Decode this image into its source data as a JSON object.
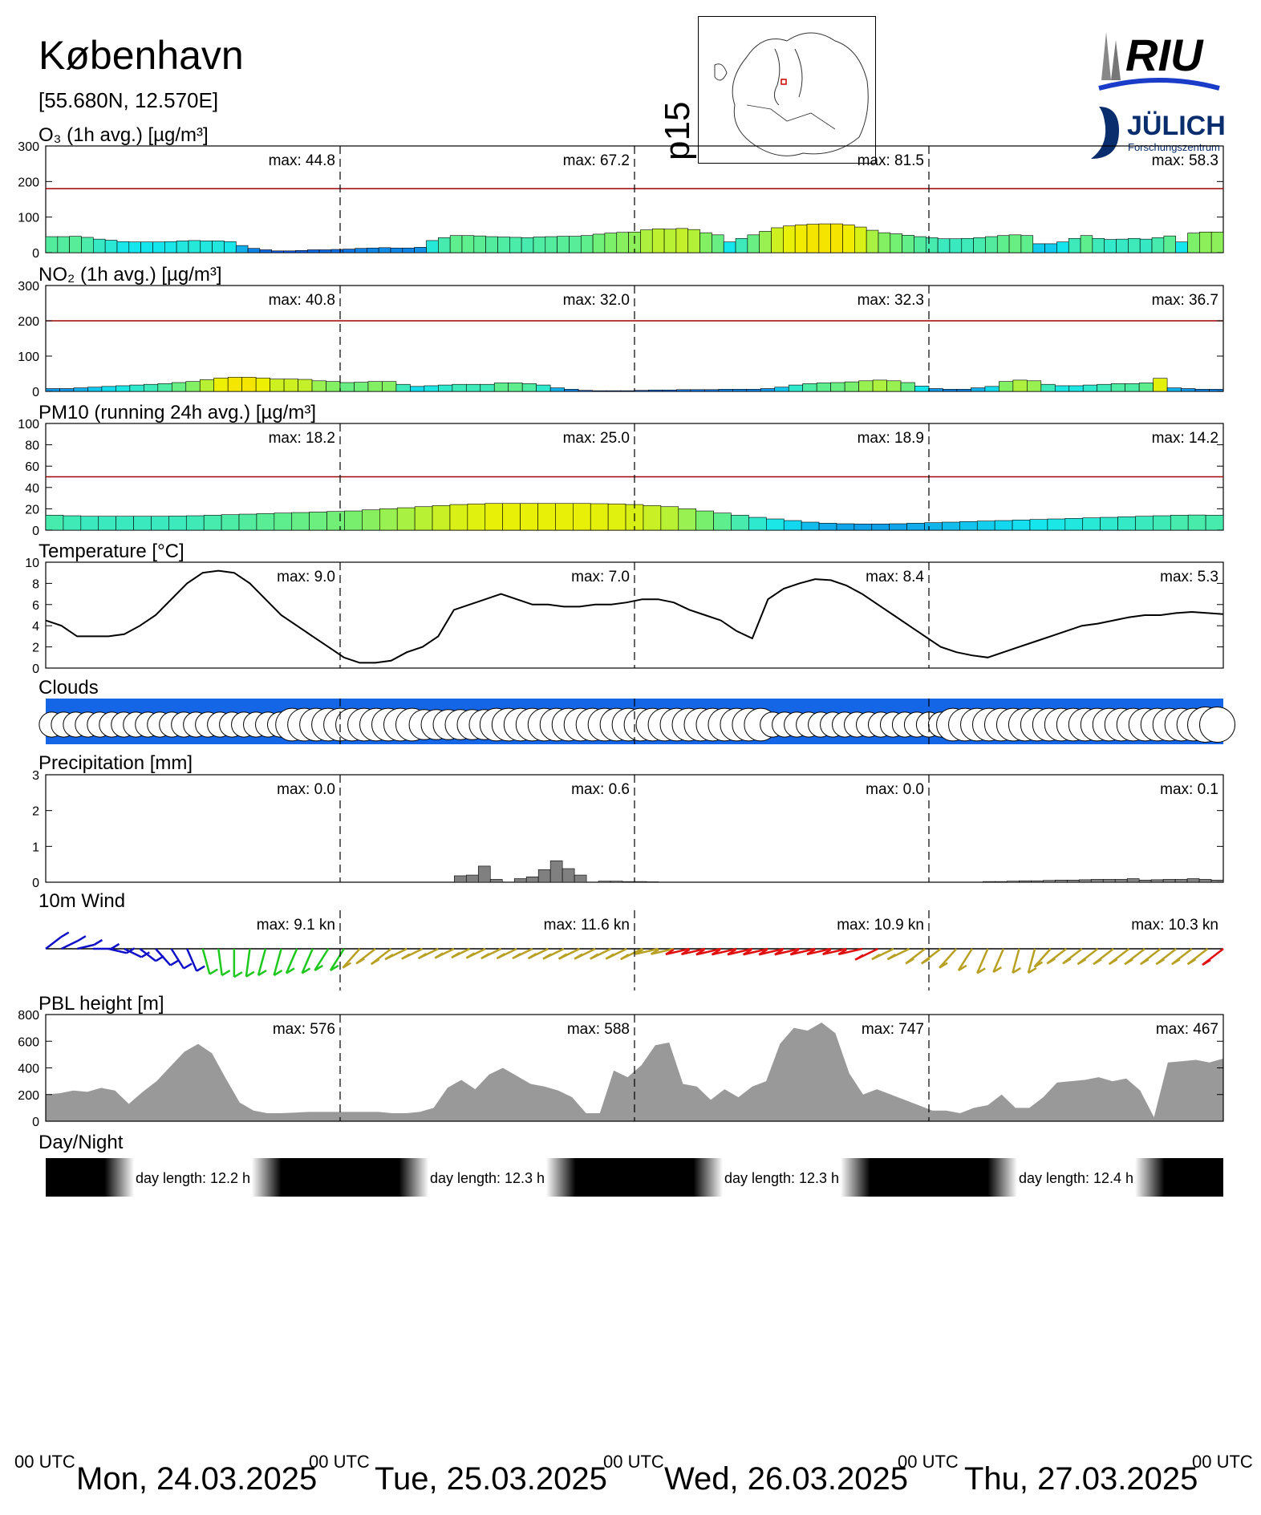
{
  "header": {
    "station": "København",
    "coords": "[55.680N, 12.570E]",
    "map_code": "p15",
    "logo_riu": "RIU",
    "logo_fz": "JÜLICH",
    "logo_fz_sub": "Forschungszentrum"
  },
  "footer": {
    "utc_label": "00 UTC",
    "days": [
      "Mon, 24.03.2025",
      "Tue, 25.03.2025",
      "Wed, 26.03.2025",
      "Thu, 27.03.2025"
    ]
  },
  "colors": {
    "threshold": "#a00000",
    "gray": "#999999",
    "wind_blue": "#1010c8",
    "wind_green": "#1ec81e",
    "wind_olive": "#b8a023",
    "wind_red": "#e01010",
    "cloud_bg": "#1466e6"
  },
  "chart_data": [
    {
      "id": "o3",
      "type": "bar",
      "title": "O₃ (1h avg.) [µg/m³]",
      "ylim": [
        0,
        300
      ],
      "yticks": [
        0,
        100,
        200,
        300
      ],
      "threshold": 180,
      "daily_max": [
        "max:  44.8",
        "max:  67.2",
        "max:  81.5",
        "max:  58.3"
      ],
      "values": [
        45,
        45,
        46,
        43,
        38,
        35,
        31,
        30,
        30,
        30,
        31,
        33,
        34,
        33,
        33,
        31,
        20,
        12,
        8,
        5,
        5,
        6,
        8,
        8,
        9,
        10,
        12,
        13,
        14,
        13,
        13,
        15,
        34,
        42,
        48,
        48,
        47,
        45,
        44,
        43,
        42,
        44,
        45,
        46,
        46,
        48,
        52,
        55,
        57,
        58,
        64,
        67,
        66,
        68,
        65,
        56,
        50,
        30,
        40,
        50,
        60,
        70,
        75,
        78,
        80,
        81,
        81,
        78,
        72,
        63,
        56,
        53,
        49,
        45,
        42,
        39,
        39,
        40,
        42,
        45,
        48,
        50,
        48,
        25,
        25,
        30,
        40,
        48,
        40,
        37,
        38,
        40,
        38,
        42,
        47,
        30,
        55,
        58,
        58
      ]
    },
    {
      "id": "no2",
      "type": "bar",
      "title": "NO₂ (1h avg.) [µg/m³]",
      "ylim": [
        0,
        300
      ],
      "yticks": [
        0,
        100,
        200,
        300
      ],
      "threshold": 200,
      "daily_max": [
        "max:  40.8",
        "max:  32.0",
        "max:  32.3",
        "max:  36.7"
      ],
      "values": [
        8,
        8,
        10,
        12,
        14,
        16,
        18,
        20,
        22,
        25,
        28,
        33,
        38,
        40,
        40,
        38,
        35,
        35,
        34,
        30,
        28,
        25,
        26,
        28,
        28,
        20,
        14,
        16,
        18,
        20,
        20,
        20,
        24,
        24,
        22,
        18,
        10,
        6,
        3,
        2,
        2,
        2,
        3,
        4,
        4,
        5,
        5,
        5,
        6,
        6,
        6,
        8,
        12,
        18,
        22,
        24,
        25,
        27,
        30,
        32,
        30,
        25,
        15,
        8,
        6,
        6,
        10,
        14,
        28,
        32,
        30,
        20,
        16,
        16,
        18,
        20,
        22,
        22,
        24,
        37,
        10,
        8,
        6,
        6
      ]
    },
    {
      "id": "pm10",
      "type": "bar",
      "title": "PM10 (running 24h avg.) [µg/m³]",
      "ylim": [
        0,
        100
      ],
      "yticks": [
        0,
        20,
        40,
        60,
        80,
        100
      ],
      "threshold": 50,
      "daily_max": [
        "max:  18.2",
        "max:  25.0",
        "max:  18.9",
        "max:  14.2"
      ],
      "values": [
        14,
        13.5,
        13,
        13,
        13,
        13,
        13,
        13.2,
        13.5,
        14,
        14.5,
        15,
        15.5,
        16,
        16.5,
        17,
        17.5,
        18,
        19,
        20,
        21,
        22,
        23,
        24,
        24.5,
        25,
        25,
        25,
        25,
        25,
        25,
        24.8,
        24.5,
        24,
        23,
        22,
        20,
        18,
        16,
        14,
        12,
        10.5,
        9,
        7.5,
        6.5,
        6,
        5.8,
        5.8,
        6,
        6.5,
        7,
        7.5,
        8,
        8.5,
        9,
        9.5,
        10,
        10.5,
        11,
        11.5,
        12,
        12.5,
        13,
        13.5,
        14,
        14.2,
        14
      ]
    },
    {
      "id": "temperature",
      "type": "line",
      "title": "Temperature [°C]",
      "ylim": [
        0,
        10
      ],
      "yticks": [
        0,
        2,
        4,
        6,
        8,
        10
      ],
      "daily_max": [
        "max:  9.0",
        "max:  7.0",
        "max:  8.4",
        "max:  5.3"
      ],
      "values": [
        4.5,
        4.0,
        3.0,
        3.0,
        3.0,
        3.2,
        4.0,
        5.0,
        6.5,
        8.0,
        9.0,
        9.2,
        9.0,
        8.0,
        6.5,
        5.0,
        4.0,
        3.0,
        2.0,
        1.0,
        0.5,
        0.5,
        0.7,
        1.5,
        2.0,
        3.0,
        5.5,
        6.0,
        6.5,
        7.0,
        6.5,
        6.0,
        6.0,
        5.8,
        5.8,
        6.0,
        6.0,
        6.2,
        6.5,
        6.5,
        6.2,
        5.5,
        5.0,
        4.5,
        3.5,
        2.8,
        6.5,
        7.5,
        8.0,
        8.4,
        8.3,
        7.8,
        7.0,
        6.0,
        5.0,
        4.0,
        3.0,
        2.0,
        1.5,
        1.2,
        1.0,
        1.5,
        2.0,
        2.5,
        3.0,
        3.5,
        4.0,
        4.2,
        4.5,
        4.8,
        5.0,
        5.0,
        5.2,
        5.3,
        5.2,
        5.1
      ]
    },
    {
      "id": "clouds",
      "type": "area",
      "title": "Clouds",
      "cover": [
        0.6,
        0.6,
        0.6,
        0.6,
        0.6,
        0.6,
        0.6,
        0.6,
        0.6,
        0.6,
        0.6,
        0.6,
        0.6,
        0.6,
        0.6,
        0.6,
        0.6,
        0.6,
        0.6,
        0.6,
        0.9,
        0.9,
        0.9,
        0.9,
        0.9,
        0.9,
        0.9,
        0.9,
        0.9,
        0.9,
        0.9,
        0.8,
        0.8,
        0.8,
        0.8,
        0.8,
        0.8,
        0.9,
        0.9,
        0.9,
        0.9,
        0.9,
        0.9,
        0.9,
        0.9,
        0.9,
        0.9,
        0.9,
        0.9,
        0.9,
        0.9,
        0.9,
        0.9,
        0.9,
        0.9,
        0.9,
        0.9,
        0.9,
        0.9,
        0.9,
        0.6,
        0.6,
        0.6,
        0.6,
        0.6,
        0.6,
        0.6,
        0.6,
        0.6,
        0.6,
        0.6,
        0.6,
        0.6,
        0.6,
        0.6,
        0.9,
        0.9,
        0.9,
        0.9,
        0.9,
        0.9,
        0.9,
        0.9,
        0.9,
        0.9,
        0.9,
        0.9,
        0.9,
        0.9,
        0.9,
        0.9,
        0.9,
        0.9,
        0.9,
        0.9,
        0.9,
        1,
        1
      ]
    },
    {
      "id": "precip",
      "type": "bar",
      "title": "Precipitation [mm]",
      "ylim": [
        0,
        3
      ],
      "yticks": [
        0,
        1,
        2,
        3
      ],
      "daily_max": [
        "max:  0.0",
        "max:  0.6",
        "max:  0.0",
        "max:  0.1"
      ],
      "values": [
        0,
        0,
        0,
        0,
        0,
        0,
        0,
        0,
        0,
        0,
        0,
        0,
        0,
        0,
        0,
        0,
        0,
        0,
        0,
        0,
        0,
        0,
        0,
        0,
        0,
        0,
        0,
        0,
        0,
        0,
        0,
        0,
        0,
        0,
        0.18,
        0.2,
        0.45,
        0.08,
        0,
        0.1,
        0.15,
        0.35,
        0.6,
        0.38,
        0.2,
        0,
        0.03,
        0.03,
        0.02,
        0.02,
        0.01,
        0,
        0,
        0,
        0,
        0,
        0,
        0,
        0,
        0,
        0,
        0,
        0,
        0,
        0,
        0,
        0,
        0,
        0,
        0,
        0,
        0,
        0,
        0,
        0,
        0,
        0,
        0,
        0.02,
        0.02,
        0.03,
        0.04,
        0.04,
        0.05,
        0.06,
        0.06,
        0.07,
        0.08,
        0.08,
        0.08,
        0.1,
        0.06,
        0.07,
        0.08,
        0.08,
        0.1,
        0.08,
        0.06
      ]
    },
    {
      "id": "wind",
      "type": "scatter",
      "title": "10m Wind",
      "daily_max": [
        "max:  9.1 kn",
        "max:  11.6 kn",
        "max:  10.9 kn",
        "max:  10.3 kn"
      ],
      "speed_kn": [
        3,
        3,
        3,
        4,
        4,
        4,
        4,
        5,
        5,
        5,
        6,
        6,
        7,
        7,
        7,
        7,
        7,
        7,
        7,
        7,
        8,
        8,
        9,
        9,
        8,
        7,
        6,
        5,
        6,
        7,
        7,
        7,
        7,
        8,
        8,
        8,
        8,
        8,
        9,
        9,
        9,
        10,
        10,
        11,
        11,
        11,
        11,
        11,
        11,
        11,
        10,
        10,
        10,
        10,
        9,
        9,
        8,
        8,
        8,
        7,
        7,
        6,
        5,
        5,
        7,
        8,
        8,
        9,
        9,
        9,
        9,
        9,
        9,
        9,
        9,
        10
      ],
      "direction_deg": [
        60,
        70,
        80,
        90,
        100,
        110,
        120,
        130,
        140,
        150,
        160,
        170,
        180,
        190,
        200,
        200,
        210,
        210,
        220,
        220,
        230,
        240,
        240,
        250,
        250,
        250,
        250,
        250,
        250,
        250,
        250,
        250,
        250,
        250,
        250,
        250,
        250,
        250,
        250,
        260,
        260,
        260,
        260,
        260,
        260,
        260,
        260,
        260,
        260,
        260,
        260,
        260,
        260,
        250,
        250,
        250,
        240,
        240,
        230,
        220,
        210,
        210,
        200,
        200,
        230,
        240,
        240,
        240,
        240,
        240,
        240,
        240,
        240,
        240,
        240,
        240
      ]
    },
    {
      "id": "pbl",
      "type": "area",
      "title": "PBL height [m]",
      "ylim": [
        0,
        800
      ],
      "yticks": [
        0,
        200,
        400,
        600,
        800
      ],
      "daily_max": [
        "max:  576",
        "max:  588",
        "max:  747",
        "max:  467"
      ],
      "values": [
        200,
        210,
        230,
        220,
        250,
        230,
        130,
        220,
        300,
        410,
        520,
        580,
        510,
        320,
        140,
        80,
        60,
        60,
        65,
        70,
        70,
        70,
        70,
        70,
        70,
        60,
        60,
        70,
        100,
        250,
        310,
        240,
        350,
        400,
        340,
        280,
        260,
        230,
        180,
        60,
        60,
        380,
        330,
        420,
        570,
        590,
        280,
        260,
        160,
        240,
        180,
        260,
        300,
        580,
        700,
        680,
        740,
        660,
        360,
        200,
        240,
        200,
        160,
        120,
        80,
        80,
        60,
        100,
        120,
        200,
        100,
        100,
        180,
        290,
        300,
        310,
        330,
        300,
        320,
        230,
        30,
        440,
        450,
        460,
        440,
        470
      ]
    },
    {
      "id": "daynight",
      "type": "heatmap",
      "title": "Day/Night",
      "day_length": [
        "day length:  12.2 h",
        "day length:  12.3 h",
        "day length:  12.3 h",
        "day length:  12.4 h"
      ]
    }
  ]
}
